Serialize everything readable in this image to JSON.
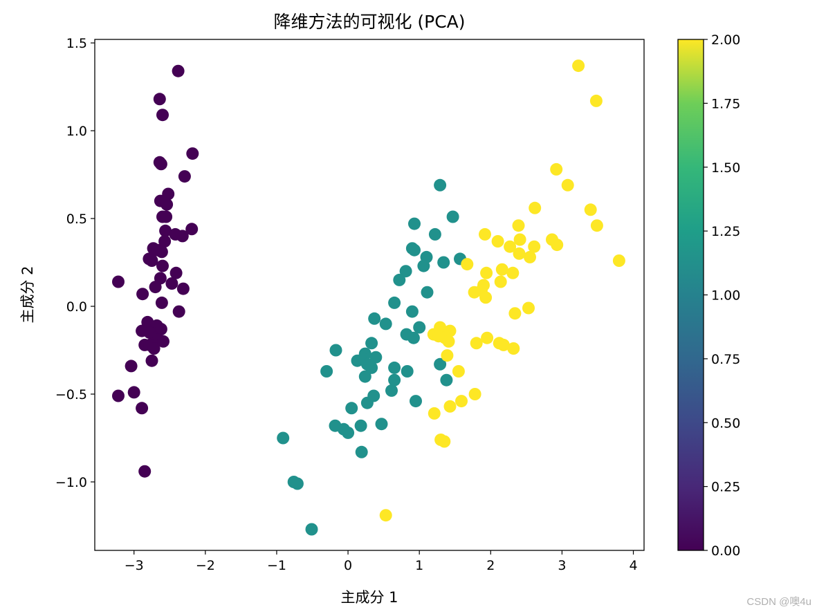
{
  "chart_data": {
    "type": "scatter",
    "title": "降维方法的可视化 (PCA)",
    "xlabel": "主成分 1",
    "ylabel": "主成分 2",
    "xlim": [
      -3.55,
      4.15
    ],
    "ylim": [
      -1.39,
      1.52
    ],
    "xticks": [
      -3,
      -2,
      -1,
      0,
      1,
      2,
      3,
      4
    ],
    "xtick_labels": [
      "−3",
      "−2",
      "−1",
      "0",
      "1",
      "2",
      "3",
      "4"
    ],
    "yticks": [
      -1.0,
      -0.5,
      0.0,
      0.5,
      1.0,
      1.5
    ],
    "ytick_labels": [
      "−1.0",
      "−0.5",
      "0.0",
      "0.5",
      "1.0",
      "1.5"
    ],
    "grid": false,
    "colormap": "viridis",
    "colorbar": {
      "range": [
        0,
        2
      ],
      "ticks": [
        0,
        0.25,
        0.5,
        0.75,
        1.0,
        1.25,
        1.5,
        1.75,
        2.0
      ],
      "tick_labels": [
        "0.00",
        "0.25",
        "0.50",
        "0.75",
        "1.00",
        "1.25",
        "1.50",
        "1.75",
        "2.00"
      ]
    },
    "class_colors": [
      "#440154",
      "#21918c",
      "#fde725"
    ],
    "points": [
      {
        "x": -2.38,
        "y": 1.34,
        "c": 0
      },
      {
        "x": -2.64,
        "y": 1.18,
        "c": 0
      },
      {
        "x": -2.6,
        "y": 1.09,
        "c": 0
      },
      {
        "x": -2.18,
        "y": 0.87,
        "c": 0
      },
      {
        "x": -2.64,
        "y": 0.82,
        "c": 0
      },
      {
        "x": -2.62,
        "y": 0.81,
        "c": 0
      },
      {
        "x": -2.29,
        "y": 0.74,
        "c": 0
      },
      {
        "x": -2.52,
        "y": 0.64,
        "c": 0
      },
      {
        "x": -2.63,
        "y": 0.6,
        "c": 0
      },
      {
        "x": -2.54,
        "y": 0.58,
        "c": 0
      },
      {
        "x": -2.6,
        "y": 0.51,
        "c": 0
      },
      {
        "x": -2.55,
        "y": 0.51,
        "c": 0
      },
      {
        "x": -2.56,
        "y": 0.43,
        "c": 0
      },
      {
        "x": -2.19,
        "y": 0.44,
        "c": 0
      },
      {
        "x": -2.42,
        "y": 0.41,
        "c": 0
      },
      {
        "x": -2.32,
        "y": 0.4,
        "c": 0
      },
      {
        "x": -2.57,
        "y": 0.37,
        "c": 0
      },
      {
        "x": -2.73,
        "y": 0.33,
        "c": 0
      },
      {
        "x": -2.67,
        "y": 0.32,
        "c": 0
      },
      {
        "x": -2.61,
        "y": 0.31,
        "c": 0
      },
      {
        "x": -2.79,
        "y": 0.27,
        "c": 0
      },
      {
        "x": -2.75,
        "y": 0.26,
        "c": 0
      },
      {
        "x": -2.6,
        "y": 0.23,
        "c": 0
      },
      {
        "x": -2.41,
        "y": 0.19,
        "c": 0
      },
      {
        "x": -2.63,
        "y": 0.16,
        "c": 0
      },
      {
        "x": -2.47,
        "y": 0.13,
        "c": 0
      },
      {
        "x": -2.7,
        "y": 0.11,
        "c": 0
      },
      {
        "x": -2.31,
        "y": 0.1,
        "c": 0
      },
      {
        "x": -3.22,
        "y": 0.14,
        "c": 0
      },
      {
        "x": -2.88,
        "y": 0.07,
        "c": 0
      },
      {
        "x": -2.61,
        "y": 0.02,
        "c": 0
      },
      {
        "x": -2.37,
        "y": -0.03,
        "c": 0
      },
      {
        "x": -2.81,
        "y": -0.09,
        "c": 0
      },
      {
        "x": -2.68,
        "y": -0.11,
        "c": 0
      },
      {
        "x": -2.89,
        "y": -0.14,
        "c": 0
      },
      {
        "x": -2.62,
        "y": -0.13,
        "c": 0
      },
      {
        "x": -2.78,
        "y": -0.15,
        "c": 0
      },
      {
        "x": -2.7,
        "y": -0.18,
        "c": 0
      },
      {
        "x": -2.66,
        "y": -0.19,
        "c": 0
      },
      {
        "x": -2.59,
        "y": -0.2,
        "c": 0
      },
      {
        "x": -2.85,
        "y": -0.22,
        "c": 0
      },
      {
        "x": -2.78,
        "y": -0.22,
        "c": 0
      },
      {
        "x": -2.72,
        "y": -0.24,
        "c": 0
      },
      {
        "x": -2.75,
        "y": -0.31,
        "c": 0
      },
      {
        "x": -3.04,
        "y": -0.34,
        "c": 0
      },
      {
        "x": -3.0,
        "y": -0.49,
        "c": 0
      },
      {
        "x": -3.22,
        "y": -0.51,
        "c": 0
      },
      {
        "x": -2.89,
        "y": -0.58,
        "c": 0
      },
      {
        "x": -2.85,
        "y": -0.94,
        "c": 0
      },
      {
        "x": 1.29,
        "y": 0.69,
        "c": 1
      },
      {
        "x": 1.47,
        "y": 0.51,
        "c": 1
      },
      {
        "x": 0.93,
        "y": 0.47,
        "c": 1
      },
      {
        "x": 1.22,
        "y": 0.41,
        "c": 1
      },
      {
        "x": 0.9,
        "y": 0.33,
        "c": 1
      },
      {
        "x": 0.93,
        "y": 0.32,
        "c": 1
      },
      {
        "x": 1.1,
        "y": 0.28,
        "c": 1
      },
      {
        "x": 1.57,
        "y": 0.27,
        "c": 1
      },
      {
        "x": 1.06,
        "y": 0.23,
        "c": 1
      },
      {
        "x": 1.34,
        "y": 0.25,
        "c": 1
      },
      {
        "x": 0.81,
        "y": 0.2,
        "c": 1
      },
      {
        "x": 0.72,
        "y": 0.15,
        "c": 1
      },
      {
        "x": 1.11,
        "y": 0.08,
        "c": 1
      },
      {
        "x": 0.65,
        "y": 0.02,
        "c": 1
      },
      {
        "x": 0.9,
        "y": -0.03,
        "c": 1
      },
      {
        "x": 0.37,
        "y": -0.07,
        "c": 1
      },
      {
        "x": 0.53,
        "y": -0.1,
        "c": 1
      },
      {
        "x": 1.0,
        "y": -0.12,
        "c": 1
      },
      {
        "x": 0.82,
        "y": -0.16,
        "c": 1
      },
      {
        "x": 0.92,
        "y": -0.18,
        "c": 1
      },
      {
        "x": 0.33,
        "y": -0.21,
        "c": 1
      },
      {
        "x": -0.17,
        "y": -0.25,
        "c": 1
      },
      {
        "x": 0.24,
        "y": -0.27,
        "c": 1
      },
      {
        "x": 0.13,
        "y": -0.31,
        "c": 1
      },
      {
        "x": 0.21,
        "y": -0.3,
        "c": 1
      },
      {
        "x": 0.39,
        "y": -0.29,
        "c": 1
      },
      {
        "x": 0.33,
        "y": -0.35,
        "c": 1
      },
      {
        "x": 0.27,
        "y": -0.33,
        "c": 1
      },
      {
        "x": 0.65,
        "y": -0.35,
        "c": 1
      },
      {
        "x": 0.83,
        "y": -0.37,
        "c": 1
      },
      {
        "x": -0.3,
        "y": -0.37,
        "c": 1
      },
      {
        "x": 0.24,
        "y": -0.4,
        "c": 1
      },
      {
        "x": 0.65,
        "y": -0.42,
        "c": 1
      },
      {
        "x": 1.29,
        "y": -0.33,
        "c": 1
      },
      {
        "x": 1.38,
        "y": -0.42,
        "c": 1
      },
      {
        "x": 0.61,
        "y": -0.48,
        "c": 1
      },
      {
        "x": 0.36,
        "y": -0.51,
        "c": 1
      },
      {
        "x": 0.27,
        "y": -0.55,
        "c": 1
      },
      {
        "x": 0.95,
        "y": -0.54,
        "c": 1
      },
      {
        "x": 0.05,
        "y": -0.58,
        "c": 1
      },
      {
        "x": 0.47,
        "y": -0.67,
        "c": 1
      },
      {
        "x": 0.18,
        "y": -0.68,
        "c": 1
      },
      {
        "x": -0.18,
        "y": -0.68,
        "c": 1
      },
      {
        "x": -0.06,
        "y": -0.7,
        "c": 1
      },
      {
        "x": 0.0,
        "y": -0.72,
        "c": 1
      },
      {
        "x": 0.19,
        "y": -0.83,
        "c": 1
      },
      {
        "x": -0.91,
        "y": -0.75,
        "c": 1
      },
      {
        "x": -0.76,
        "y": -1.0,
        "c": 1
      },
      {
        "x": -0.71,
        "y": -1.01,
        "c": 1
      },
      {
        "x": -0.51,
        "y": -1.27,
        "c": 1
      },
      {
        "x": 3.23,
        "y": 1.37,
        "c": 2
      },
      {
        "x": 3.48,
        "y": 1.17,
        "c": 2
      },
      {
        "x": 2.92,
        "y": 0.78,
        "c": 2
      },
      {
        "x": 3.08,
        "y": 0.69,
        "c": 2
      },
      {
        "x": 2.62,
        "y": 0.56,
        "c": 2
      },
      {
        "x": 3.4,
        "y": 0.55,
        "c": 2
      },
      {
        "x": 2.39,
        "y": 0.46,
        "c": 2
      },
      {
        "x": 3.49,
        "y": 0.46,
        "c": 2
      },
      {
        "x": 1.92,
        "y": 0.41,
        "c": 2
      },
      {
        "x": 2.1,
        "y": 0.37,
        "c": 2
      },
      {
        "x": 2.41,
        "y": 0.38,
        "c": 2
      },
      {
        "x": 2.27,
        "y": 0.34,
        "c": 2
      },
      {
        "x": 2.61,
        "y": 0.34,
        "c": 2
      },
      {
        "x": 2.86,
        "y": 0.38,
        "c": 2
      },
      {
        "x": 2.93,
        "y": 0.35,
        "c": 2
      },
      {
        "x": 2.4,
        "y": 0.3,
        "c": 2
      },
      {
        "x": 2.55,
        "y": 0.28,
        "c": 2
      },
      {
        "x": 3.8,
        "y": 0.26,
        "c": 2
      },
      {
        "x": 1.67,
        "y": 0.24,
        "c": 2
      },
      {
        "x": 2.16,
        "y": 0.21,
        "c": 2
      },
      {
        "x": 1.94,
        "y": 0.19,
        "c": 2
      },
      {
        "x": 2.31,
        "y": 0.19,
        "c": 2
      },
      {
        "x": 2.14,
        "y": 0.14,
        "c": 2
      },
      {
        "x": 1.9,
        "y": 0.12,
        "c": 2
      },
      {
        "x": 1.87,
        "y": 0.09,
        "c": 2
      },
      {
        "x": 1.77,
        "y": 0.08,
        "c": 2
      },
      {
        "x": 1.93,
        "y": 0.05,
        "c": 2
      },
      {
        "x": 2.53,
        "y": -0.01,
        "c": 2
      },
      {
        "x": 2.34,
        "y": -0.04,
        "c": 2
      },
      {
        "x": 1.29,
        "y": -0.12,
        "c": 2
      },
      {
        "x": 1.43,
        "y": -0.14,
        "c": 2
      },
      {
        "x": 1.33,
        "y": -0.15,
        "c": 2
      },
      {
        "x": 1.2,
        "y": -0.16,
        "c": 2
      },
      {
        "x": 1.27,
        "y": -0.17,
        "c": 2
      },
      {
        "x": 1.36,
        "y": -0.18,
        "c": 2
      },
      {
        "x": 1.41,
        "y": -0.2,
        "c": 2
      },
      {
        "x": 1.95,
        "y": -0.18,
        "c": 2
      },
      {
        "x": 1.8,
        "y": -0.21,
        "c": 2
      },
      {
        "x": 2.12,
        "y": -0.21,
        "c": 2
      },
      {
        "x": 2.18,
        "y": -0.22,
        "c": 2
      },
      {
        "x": 2.32,
        "y": -0.24,
        "c": 2
      },
      {
        "x": 1.39,
        "y": -0.28,
        "c": 2
      },
      {
        "x": 1.55,
        "y": -0.37,
        "c": 2
      },
      {
        "x": 1.78,
        "y": -0.5,
        "c": 2
      },
      {
        "x": 1.59,
        "y": -0.54,
        "c": 2
      },
      {
        "x": 1.43,
        "y": -0.57,
        "c": 2
      },
      {
        "x": 1.21,
        "y": -0.61,
        "c": 2
      },
      {
        "x": 1.3,
        "y": -0.76,
        "c": 2
      },
      {
        "x": 1.35,
        "y": -0.77,
        "c": 2
      },
      {
        "x": 0.53,
        "y": -1.19,
        "c": 2
      }
    ]
  },
  "watermark": "CSDN @噢4u"
}
